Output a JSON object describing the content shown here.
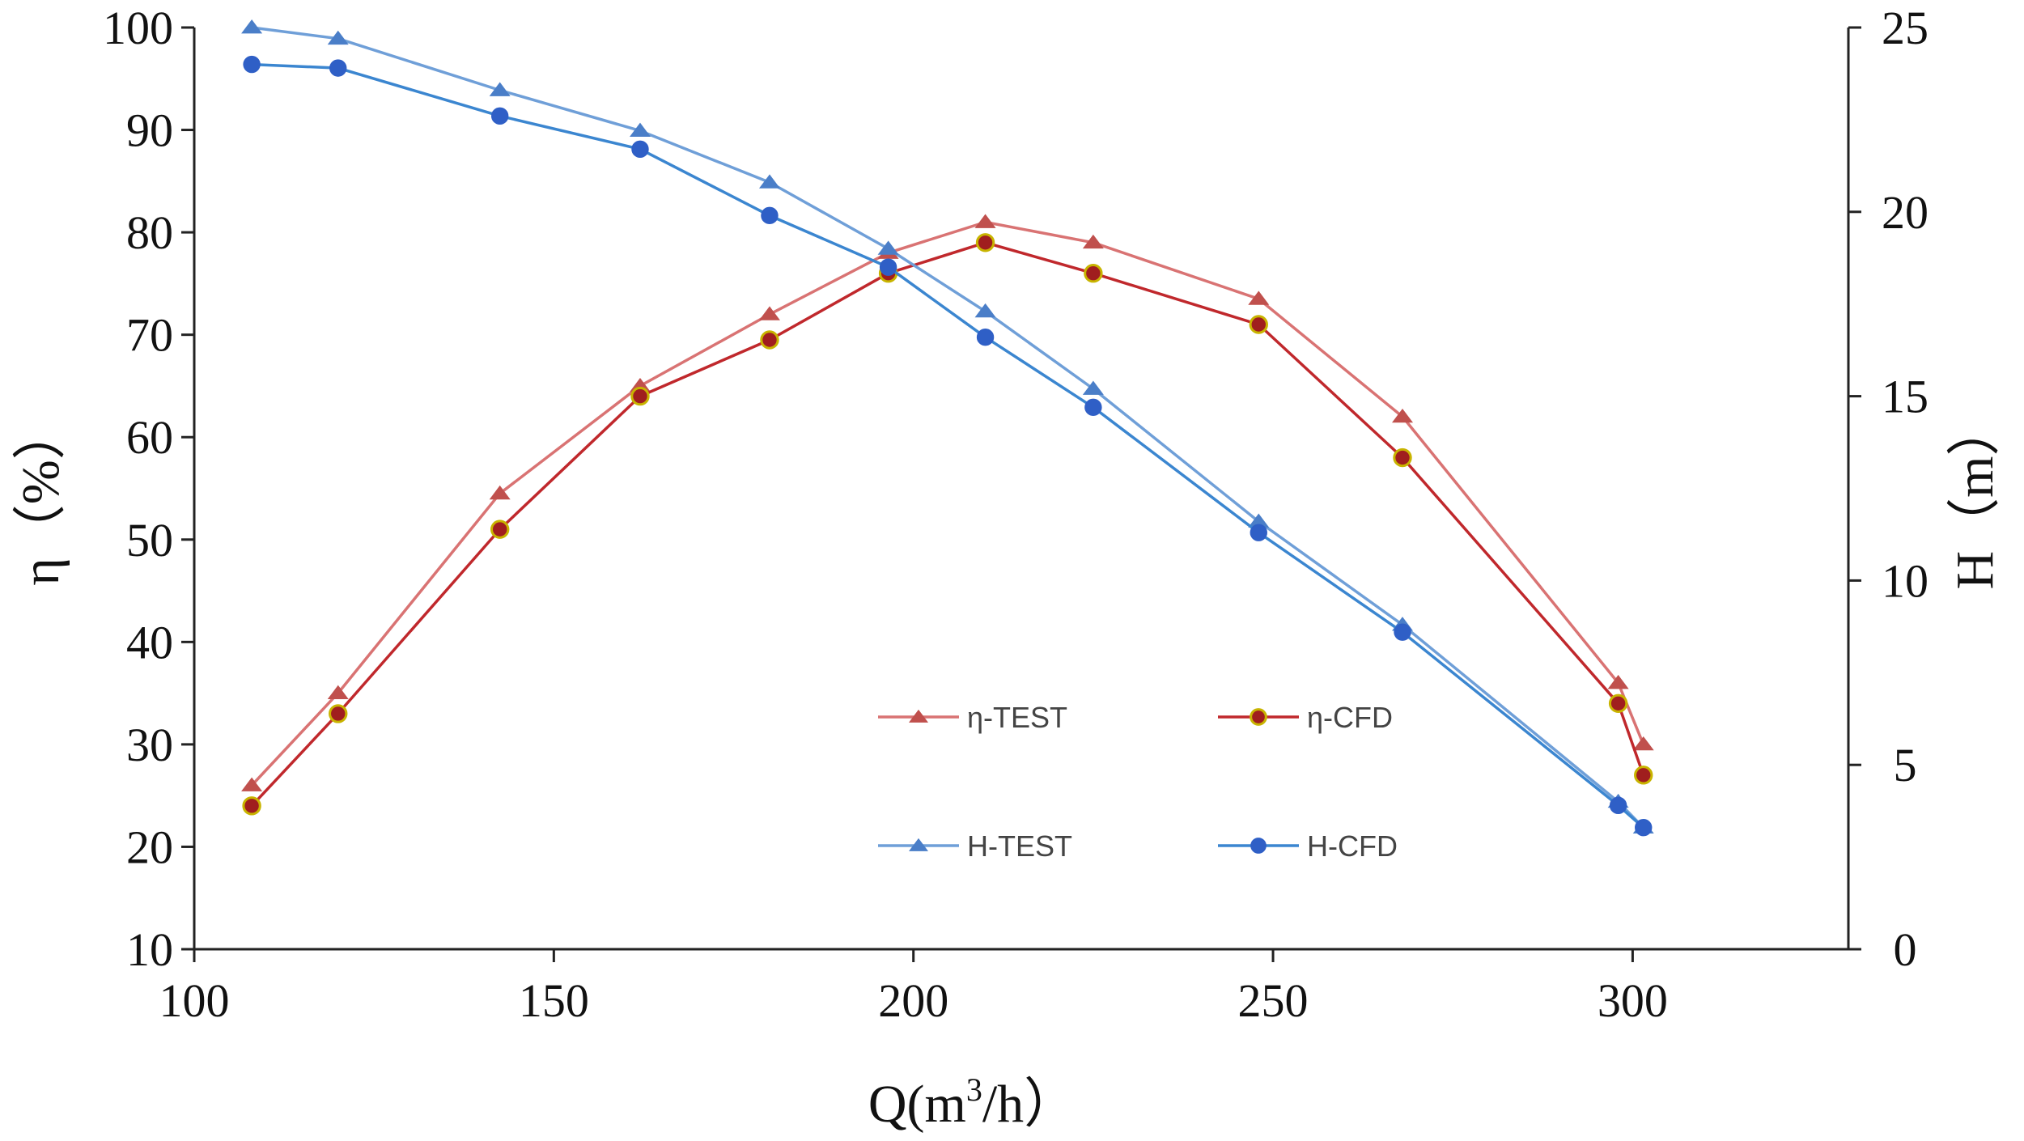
{
  "chart_data": {
    "type": "line",
    "title": "",
    "xlabel_prefix": "Q(m",
    "xlabel_sup": "3",
    "xlabel_suffix": "/h）",
    "ylabel": "η（%）",
    "y2label": "H（m）",
    "xlim": [
      100,
      330
    ],
    "ylim": [
      10,
      100
    ],
    "y2lim": [
      0,
      25
    ],
    "x_ticks": [
      100,
      150,
      200,
      250,
      300
    ],
    "y_ticks": [
      10,
      20,
      30,
      40,
      50,
      60,
      70,
      80,
      90,
      100
    ],
    "y2_ticks": [
      0,
      5,
      10,
      15,
      20,
      25
    ],
    "grid": false,
    "legend_position": "center-right (inside plot)",
    "series": [
      {
        "name": "η-TEST",
        "axis": "left",
        "color": "#d97373",
        "marker": "triangle",
        "marker_fill": "#c0504d",
        "x": [
          108,
          120,
          142.5,
          162,
          180,
          196.5,
          210,
          225,
          248,
          268,
          298,
          301.5
        ],
        "y": [
          26,
          35,
          54.5,
          65,
          72,
          78,
          81,
          79,
          73.5,
          62,
          36,
          30
        ]
      },
      {
        "name": "η-CFD",
        "axis": "left",
        "color": "#c0282c",
        "marker": "circle",
        "marker_fill": "#a01e1e",
        "marker_stroke": "#c8b400",
        "x": [
          108,
          120,
          142.5,
          162,
          180,
          196.5,
          210,
          225,
          248,
          268,
          298,
          301.5
        ],
        "y": [
          24,
          33,
          51,
          64,
          69.5,
          76,
          79,
          76,
          71,
          58,
          34,
          27
        ]
      },
      {
        "name": "H-TEST",
        "axis": "right",
        "color": "#6f9fd8",
        "marker": "triangle",
        "marker_fill": "#4a7ec8",
        "x": [
          108,
          120,
          142.5,
          162,
          180,
          196.5,
          210,
          225,
          248,
          268,
          298,
          301.5
        ],
        "y": [
          25,
          24.7,
          23.3,
          22.2,
          20.8,
          19,
          17.3,
          15.2,
          11.6,
          8.8,
          4,
          3.3
        ]
      },
      {
        "name": "H-CFD",
        "axis": "right",
        "color": "#3b86d0",
        "marker": "circle",
        "marker_fill": "#2f5fc6",
        "x": [
          108,
          120,
          142.5,
          162,
          180,
          196.5,
          210,
          225,
          248,
          268,
          298,
          301.5
        ],
        "y": [
          24,
          23.9,
          22.6,
          21.7,
          19.9,
          18.5,
          16.6,
          14.7,
          11.3,
          8.6,
          3.9,
          3.3
        ]
      }
    ]
  }
}
